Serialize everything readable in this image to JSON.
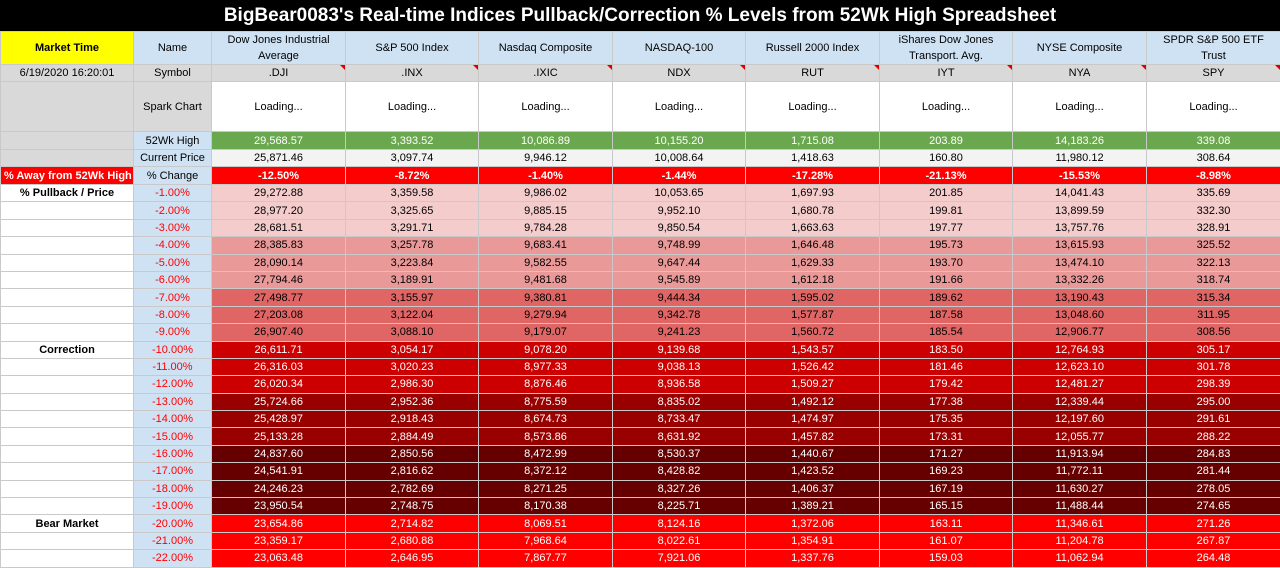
{
  "title": "BigBear0083's Real-time Indices Pullback/Correction % Levels from 52Wk High Spreadsheet",
  "header": {
    "market_time_label": "Market Time",
    "name_label": "Name",
    "timestamp": "6/19/2020 16:20:01",
    "symbol_label": "Symbol",
    "spark_label": "Spark Chart",
    "high_label": "52Wk High",
    "current_label": "Current Price",
    "away_label": "% Away from 52Wk High",
    "change_label": "% Change",
    "pullback_label": "% Pullback / Price",
    "correction_label": "Correction",
    "bear_label": "Bear Market"
  },
  "indices": [
    {
      "name": "Dow Jones Industrial Average",
      "symbol": ".DJI",
      "spark": "Loading...",
      "high": "29,568.57",
      "price": "25,871.46",
      "change": "-12.50%"
    },
    {
      "name": "S&P 500 Index",
      "symbol": ".INX",
      "spark": "Loading...",
      "high": "3,393.52",
      "price": "3,097.74",
      "change": "-8.72%"
    },
    {
      "name": "Nasdaq Composite",
      "symbol": ".IXIC",
      "spark": "Loading...",
      "high": "10,086.89",
      "price": "9,946.12",
      "change": "-1.40%"
    },
    {
      "name": "NASDAQ-100",
      "symbol": "NDX",
      "spark": "Loading...",
      "high": "10,155.20",
      "price": "10,008.64",
      "change": "-1.44%"
    },
    {
      "name": "Russell 2000 Index",
      "symbol": "RUT",
      "spark": "Loading...",
      "high": "1,715.08",
      "price": "1,418.63",
      "change": "-17.28%"
    },
    {
      "name": "iShares Dow Jones Transport. Avg.",
      "symbol": "IYT",
      "spark": "Loading...",
      "high": "203.89",
      "price": "160.80",
      "change": "-21.13%"
    },
    {
      "name": "NYSE Composite",
      "symbol": "NYA",
      "spark": "Loading...",
      "high": "14,183.26",
      "price": "11,980.12",
      "change": "-15.53%"
    },
    {
      "name": "SPDR S&P 500 ETF Trust",
      "symbol": "SPY",
      "spark": "Loading...",
      "high": "339.08",
      "price": "308.64",
      "change": "-8.98%"
    }
  ],
  "levels": [
    {
      "pct": "-1.00%",
      "v": [
        "29,272.88",
        "3,359.58",
        "9,986.02",
        "10,053.65",
        "1,697.93",
        "201.85",
        "14,041.43",
        "335.69"
      ]
    },
    {
      "pct": "-2.00%",
      "v": [
        "28,977.20",
        "3,325.65",
        "9,885.15",
        "9,952.10",
        "1,680.78",
        "199.81",
        "13,899.59",
        "332.30"
      ]
    },
    {
      "pct": "-3.00%",
      "v": [
        "28,681.51",
        "3,291.71",
        "9,784.28",
        "9,850.54",
        "1,663.63",
        "197.77",
        "13,757.76",
        "328.91"
      ]
    },
    {
      "pct": "-4.00%",
      "v": [
        "28,385.83",
        "3,257.78",
        "9,683.41",
        "9,748.99",
        "1,646.48",
        "195.73",
        "13,615.93",
        "325.52"
      ]
    },
    {
      "pct": "-5.00%",
      "v": [
        "28,090.14",
        "3,223.84",
        "9,582.55",
        "9,647.44",
        "1,629.33",
        "193.70",
        "13,474.10",
        "322.13"
      ]
    },
    {
      "pct": "-6.00%",
      "v": [
        "27,794.46",
        "3,189.91",
        "9,481.68",
        "9,545.89",
        "1,612.18",
        "191.66",
        "13,332.26",
        "318.74"
      ]
    },
    {
      "pct": "-7.00%",
      "v": [
        "27,498.77",
        "3,155.97",
        "9,380.81",
        "9,444.34",
        "1,595.02",
        "189.62",
        "13,190.43",
        "315.34"
      ]
    },
    {
      "pct": "-8.00%",
      "v": [
        "27,203.08",
        "3,122.04",
        "9,279.94",
        "9,342.78",
        "1,577.87",
        "187.58",
        "13,048.60",
        "311.95"
      ]
    },
    {
      "pct": "-9.00%",
      "v": [
        "26,907.40",
        "3,088.10",
        "9,179.07",
        "9,241.23",
        "1,560.72",
        "185.54",
        "12,906.77",
        "308.56"
      ]
    },
    {
      "pct": "-10.00%",
      "v": [
        "26,611.71",
        "3,054.17",
        "9,078.20",
        "9,139.68",
        "1,543.57",
        "183.50",
        "12,764.93",
        "305.17"
      ]
    },
    {
      "pct": "-11.00%",
      "v": [
        "26,316.03",
        "3,020.23",
        "8,977.33",
        "9,038.13",
        "1,526.42",
        "181.46",
        "12,623.10",
        "301.78"
      ]
    },
    {
      "pct": "-12.00%",
      "v": [
        "26,020.34",
        "2,986.30",
        "8,876.46",
        "8,936.58",
        "1,509.27",
        "179.42",
        "12,481.27",
        "298.39"
      ]
    },
    {
      "pct": "-13.00%",
      "v": [
        "25,724.66",
        "2,952.36",
        "8,775.59",
        "8,835.02",
        "1,492.12",
        "177.38",
        "12,339.44",
        "295.00"
      ]
    },
    {
      "pct": "-14.00%",
      "v": [
        "25,428.97",
        "2,918.43",
        "8,674.73",
        "8,733.47",
        "1,474.97",
        "175.35",
        "12,197.60",
        "291.61"
      ]
    },
    {
      "pct": "-15.00%",
      "v": [
        "25,133.28",
        "2,884.49",
        "8,573.86",
        "8,631.92",
        "1,457.82",
        "173.31",
        "12,055.77",
        "288.22"
      ]
    },
    {
      "pct": "-16.00%",
      "v": [
        "24,837.60",
        "2,850.56",
        "8,472.99",
        "8,530.37",
        "1,440.67",
        "171.27",
        "11,913.94",
        "284.83"
      ]
    },
    {
      "pct": "-17.00%",
      "v": [
        "24,541.91",
        "2,816.62",
        "8,372.12",
        "8,428.82",
        "1,423.52",
        "169.23",
        "11,772.11",
        "281.44"
      ]
    },
    {
      "pct": "-18.00%",
      "v": [
        "24,246.23",
        "2,782.69",
        "8,271.25",
        "8,327.26",
        "1,406.37",
        "167.19",
        "11,630.27",
        "278.05"
      ]
    },
    {
      "pct": "-19.00%",
      "v": [
        "23,950.54",
        "2,748.75",
        "8,170.38",
        "8,225.71",
        "1,389.21",
        "165.15",
        "11,488.44",
        "274.65"
      ]
    },
    {
      "pct": "-20.00%",
      "v": [
        "23,654.86",
        "2,714.82",
        "8,069.51",
        "8,124.16",
        "1,372.06",
        "163.11",
        "11,346.61",
        "271.26"
      ]
    },
    {
      "pct": "-21.00%",
      "v": [
        "23,359.17",
        "2,680.88",
        "7,968.64",
        "8,022.61",
        "1,354.91",
        "161.07",
        "11,204.78",
        "267.87"
      ]
    },
    {
      "pct": "-22.00%",
      "v": [
        "23,063.48",
        "2,646.95",
        "7,867.77",
        "7,921.06",
        "1,337.76",
        "159.03",
        "11,062.94",
        "264.48"
      ]
    }
  ],
  "bands": [
    {
      "rows": [
        0,
        2
      ],
      "bg": "#f4cccc",
      "fg": "#000000"
    },
    {
      "rows": [
        3,
        5
      ],
      "bg": "#ea9999",
      "fg": "#000000"
    },
    {
      "rows": [
        6,
        8
      ],
      "bg": "#e06666",
      "fg": "#000000"
    },
    {
      "rows": [
        9,
        11
      ],
      "bg": "#cc0000",
      "fg": "#ffffff"
    },
    {
      "rows": [
        12,
        14
      ],
      "bg": "#990000",
      "fg": "#ffffff"
    },
    {
      "rows": [
        15,
        18
      ],
      "bg": "#660000",
      "fg": "#ffffff"
    },
    {
      "rows": [
        19,
        21
      ],
      "bg": "#ff0000",
      "fg": "#ffffff"
    }
  ]
}
